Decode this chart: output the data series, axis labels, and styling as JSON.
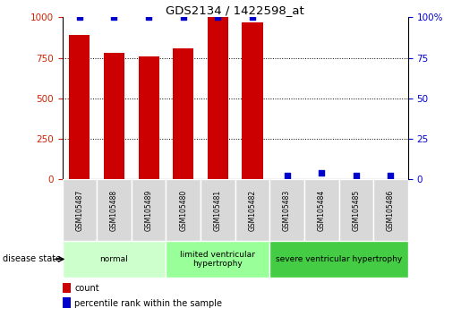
{
  "title": "GDS2134 / 1422598_at",
  "samples": [
    "GSM105487",
    "GSM105488",
    "GSM105489",
    "GSM105480",
    "GSM105481",
    "GSM105482",
    "GSM105483",
    "GSM105484",
    "GSM105485",
    "GSM105486"
  ],
  "counts": [
    890,
    780,
    760,
    810,
    1000,
    970,
    0,
    0,
    0,
    0
  ],
  "percentiles": [
    100,
    100,
    100,
    100,
    100,
    100,
    2,
    4,
    2,
    2
  ],
  "groups": [
    {
      "label": "normal",
      "start": 0,
      "end": 3,
      "color": "#ccffcc"
    },
    {
      "label": "limited ventricular\nhypertrophy",
      "start": 3,
      "end": 6,
      "color": "#99ff99"
    },
    {
      "label": "severe ventricular hypertrophy",
      "start": 6,
      "end": 10,
      "color": "#44cc44"
    }
  ],
  "ylim_left": [
    0,
    1000
  ],
  "ylim_right": [
    0,
    100
  ],
  "yticks_left": [
    0,
    250,
    500,
    750,
    1000
  ],
  "ytick_labels_left": [
    "0",
    "250",
    "500",
    "750",
    "1000"
  ],
  "yticks_right": [
    0,
    25,
    50,
    75,
    100
  ],
  "ytick_labels_right": [
    "0",
    "25",
    "50",
    "75",
    "100%"
  ],
  "bar_color": "#cc0000",
  "dot_color": "#0000cc",
  "grid_color": "#000000",
  "bg_color": "#ffffff",
  "tick_label_bg": "#d8d8d8",
  "left_axis_color": "#cc2200",
  "right_axis_color": "#0000cc",
  "legend_count_label": "count",
  "legend_pct_label": "percentile rank within the sample",
  "disease_state_label": "disease state",
  "bar_width": 0.6,
  "dot_size": 18,
  "n_samples": 10
}
